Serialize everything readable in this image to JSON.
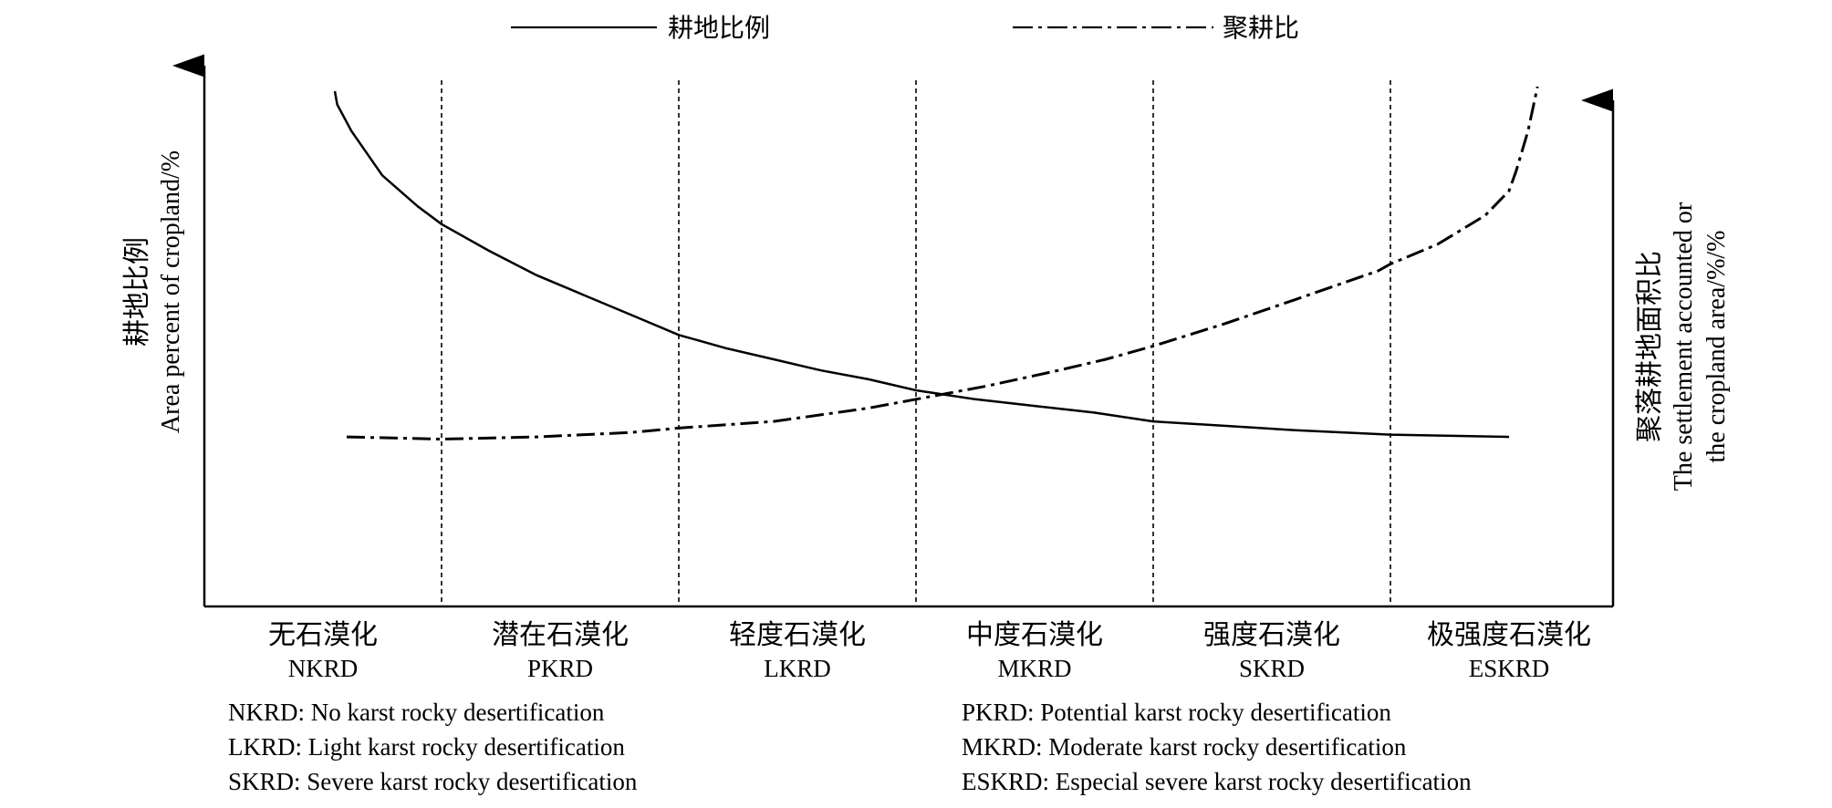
{
  "chart_data": {
    "type": "line",
    "categories": [
      {
        "zh": "无石漠化",
        "en": "NKRD"
      },
      {
        "zh": "潜在石漠化",
        "en": "PKRD"
      },
      {
        "zh": "轻度石漠化",
        "en": "LKRD"
      },
      {
        "zh": "中度石漠化",
        "en": "MKRD"
      },
      {
        "zh": "强度石漠化",
        "en": "SKRD"
      },
      {
        "zh": "极强度石漠化",
        "en": "ESKRD"
      }
    ],
    "x_range": [
      0,
      6.5
    ],
    "y_range": [
      0,
      100
    ],
    "boundaries": [
      1,
      2,
      3,
      4,
      5
    ],
    "series": [
      {
        "name": "耕地比例",
        "style": "solid",
        "axis": "left",
        "points": [
          [
            0.55,
            100
          ],
          [
            0.56,
            97
          ],
          [
            0.62,
            91
          ],
          [
            0.75,
            81
          ],
          [
            0.9,
            74
          ],
          [
            1.0,
            70
          ],
          [
            1.2,
            64
          ],
          [
            1.4,
            58.5
          ],
          [
            1.6,
            54
          ],
          [
            1.8,
            49.5
          ],
          [
            2.0,
            45
          ],
          [
            2.2,
            42
          ],
          [
            2.4,
            39.5
          ],
          [
            2.6,
            37
          ],
          [
            2.8,
            35
          ],
          [
            3.0,
            32.5
          ],
          [
            3.25,
            30.5
          ],
          [
            3.5,
            29
          ],
          [
            3.75,
            27.5
          ],
          [
            4.0,
            25.5
          ],
          [
            4.3,
            24.5
          ],
          [
            4.6,
            23.5
          ],
          [
            5.0,
            22.5
          ],
          [
            5.5,
            22
          ]
        ]
      },
      {
        "name": "聚耕比",
        "style": "dashdot",
        "axis": "right",
        "points": [
          [
            0.6,
            22
          ],
          [
            1.0,
            21.5
          ],
          [
            1.4,
            22
          ],
          [
            1.8,
            23
          ],
          [
            2.0,
            24
          ],
          [
            2.4,
            25.5
          ],
          [
            2.8,
            28.5
          ],
          [
            3.0,
            30.5
          ],
          [
            3.3,
            33.5
          ],
          [
            3.6,
            37
          ],
          [
            3.8,
            39.5
          ],
          [
            4.0,
            42.5
          ],
          [
            4.3,
            47.5
          ],
          [
            4.6,
            53
          ],
          [
            4.95,
            59.5
          ],
          [
            5.0,
            61
          ],
          [
            5.2,
            65.5
          ],
          [
            5.4,
            72
          ],
          [
            5.5,
            77.5
          ],
          [
            5.53,
            82
          ],
          [
            5.58,
            91
          ],
          [
            5.62,
            101
          ]
        ]
      }
    ],
    "legend": [
      {
        "label": "耕地比例",
        "style": "solid"
      },
      {
        "label": "聚耕比",
        "style": "dashdot"
      }
    ],
    "ylabel_left": {
      "zh": "耕地比例",
      "en": "Area percent of cropland/%"
    },
    "ylabel_right": {
      "zh": "聚落耕地面积比",
      "en1": "The settlement accounted or",
      "en2": "the cropland area/%/%"
    },
    "notes": [
      "NKRD: No karst rocky desertification",
      "PKRD: Potential karst rocky desertification",
      "LKRD: Light karst rocky desertification",
      "MKRD: Moderate karst rocky desertification",
      "SKRD: Severe karst rocky desertification",
      "ESKRD: Especial severe karst rocky desertification"
    ]
  }
}
